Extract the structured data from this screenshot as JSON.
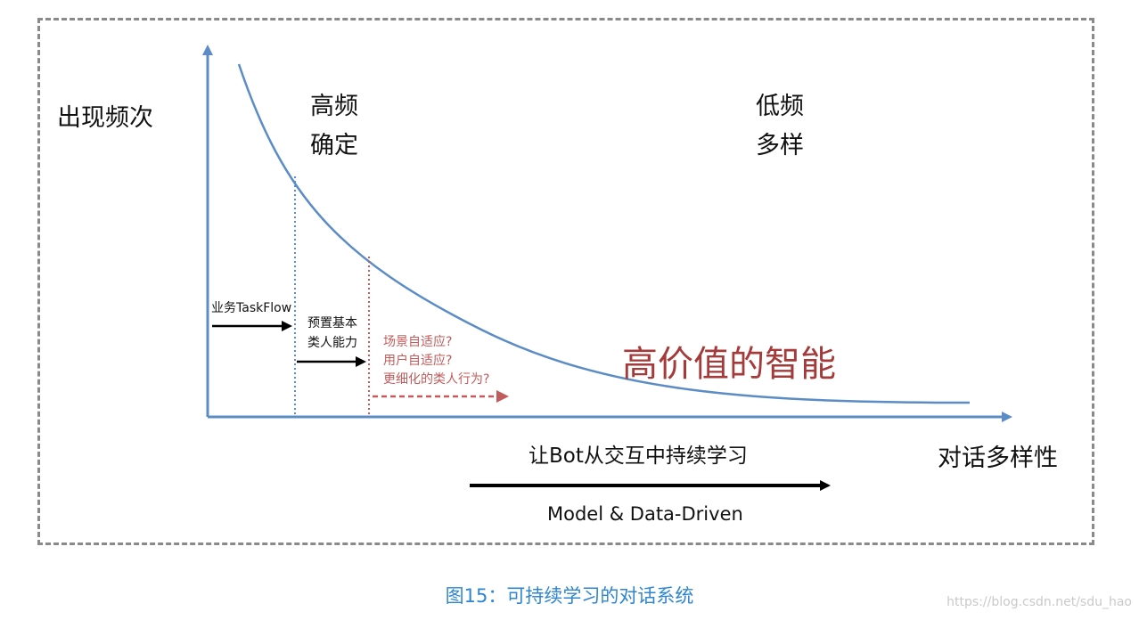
{
  "diagram": {
    "y_axis_label": "出现频次",
    "x_axis_label": "对话多样性",
    "zone_left": [
      "高频",
      "确定"
    ],
    "zone_right": [
      "低频",
      "多样"
    ],
    "stage_1": "业务TaskFlow",
    "stage_2": [
      "预置基本",
      "类人能力"
    ],
    "stage_3": [
      "场景自适应?",
      "用户自适应?",
      "更细化的类人行为?"
    ],
    "highlight": "高价值的智能",
    "learning_label": "让Bot从交互中持续学习",
    "method_label": "Model & Data-Driven",
    "colors": {
      "curve": "#5b8cc6",
      "axis": "#5b8cc6",
      "stage_3_text": "#c25b5b",
      "highlight_text": "#a53a3a",
      "frame": "#8a8a8a"
    }
  },
  "caption": "图15：可持续学习的对话系统",
  "watermark": "https://blog.csdn.net/sdu_hao"
}
